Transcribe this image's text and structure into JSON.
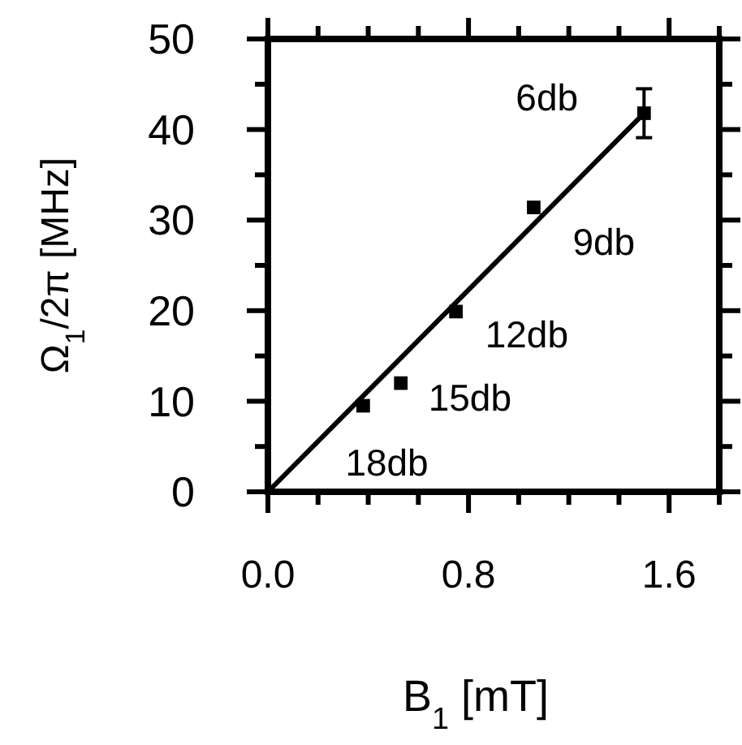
{
  "chart_data": {
    "type": "scatter",
    "xlabel": "B$_{1}$ [mT]",
    "ylabel": "Ω$_{1}$/2π [MHz]",
    "xlim": [
      0,
      1.8
    ],
    "ylim": [
      0,
      50
    ],
    "xticks": [
      {
        "value": 0,
        "label": "0.0"
      },
      {
        "value": 0.2,
        "label": null
      },
      {
        "value": 0.4,
        "label": null
      },
      {
        "value": 0.6,
        "label": null
      },
      {
        "value": 0.8,
        "label": "0.8"
      },
      {
        "value": 1.0,
        "label": null
      },
      {
        "value": 1.2,
        "label": null
      },
      {
        "value": 1.4,
        "label": null
      },
      {
        "value": 1.6,
        "label": "1.6"
      },
      {
        "value": 1.8,
        "label": null
      }
    ],
    "yticks": [
      0,
      {
        "value": 5,
        "label": null
      },
      10,
      {
        "value": 15,
        "label": null
      },
      20,
      {
        "value": 25,
        "label": null
      },
      30,
      {
        "value": 35,
        "label": null
      },
      40,
      {
        "value": 45,
        "label": null
      },
      50
    ],
    "series": [
      {
        "type": "line",
        "color": "#000000",
        "x": [
          0,
          1.5
        ],
        "values": [
          0,
          41.8
        ]
      },
      {
        "color": "#000000",
        "marker": "square",
        "x": [
          0.38,
          0.53,
          0.75,
          1.06,
          1.5
        ],
        "values": [
          9.5,
          12,
          19.9,
          31.4,
          41.8
        ],
        "errors": [
          null,
          null,
          null,
          null,
          2.7
        ]
      }
    ],
    "annotations": [
      {
        "text": "18db",
        "x": 0.38,
        "y": 9.5
      },
      {
        "text": "15db",
        "x": 0.53,
        "y": 12
      },
      {
        "text": "12db",
        "x": 0.75,
        "y": 19.9
      },
      {
        "text": "9db",
        "x": 1.06,
        "y": 31.4
      },
      {
        "text": "6db",
        "x": 1.5,
        "y": 41.8
      }
    ]
  }
}
